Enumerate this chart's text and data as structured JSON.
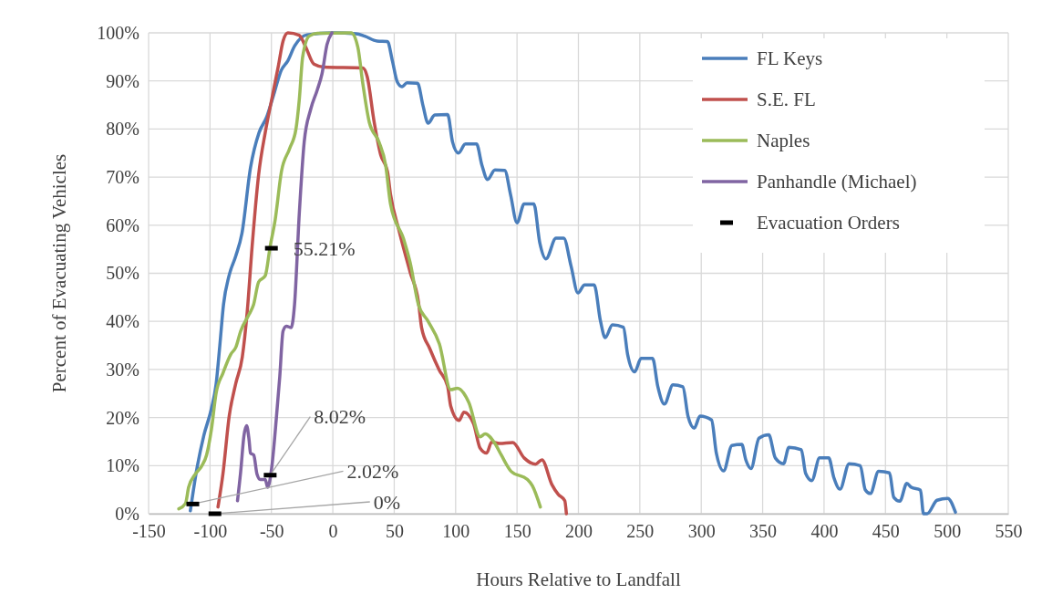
{
  "chart_data": {
    "type": "line",
    "xlabel": "Hours Relative to Landfall",
    "ylabel": "Percent of Evacuating Vehicles",
    "xlim": [
      -150,
      550
    ],
    "xticks": [
      -150,
      -100,
      -50,
      0,
      50,
      100,
      150,
      200,
      250,
      300,
      350,
      400,
      450,
      500,
      550
    ],
    "ylim": [
      0,
      100
    ],
    "yticks": [
      {
        "value": 0,
        "label": "0%"
      },
      {
        "value": 10,
        "label": "10%"
      },
      {
        "value": 20,
        "label": "20%"
      },
      {
        "value": 30,
        "label": "30%"
      },
      {
        "value": 40,
        "label": "40%"
      },
      {
        "value": 50,
        "label": "50%"
      },
      {
        "value": 60,
        "label": "60%"
      },
      {
        "value": 70,
        "label": "70%"
      },
      {
        "value": 80,
        "label": "80%"
      },
      {
        "value": 90,
        "label": "90%"
      },
      {
        "value": 100,
        "label": "100%"
      }
    ],
    "grid": true,
    "legend": "top right",
    "series": [
      {
        "name": "FL Keys",
        "color": "#4a7ebb",
        "x": [
          -116,
          -111,
          -105,
          -99,
          -95,
          -92,
          -89,
          -84.5,
          -79,
          -74,
          -67,
          -60,
          -54,
          -48.5,
          -42,
          -36.6,
          -31,
          -21,
          0.5,
          19,
          26,
          36,
          44.5,
          48.5,
          52.5,
          56.4,
          60.4,
          69,
          73.5,
          77.6,
          83,
          93.5,
          97.5,
          102.3,
          108,
          117,
          121.4,
          126,
          132,
          140,
          144.7,
          150,
          155.8,
          163.7,
          168.5,
          173.6,
          181.7,
          188,
          194,
          199.6,
          205,
          212.8,
          218,
          221.8,
          227.7,
          236.6,
          240,
          245.8,
          251,
          260.4,
          264.6,
          270,
          277,
          285,
          289.3,
          294.3,
          299,
          308.4,
          312.3,
          318.2,
          325,
          333,
          336.3,
          340.5,
          347,
          355,
          360.3,
          367,
          371.4,
          381.5,
          385,
          390,
          396.4,
          403.8,
          408,
          413,
          420.4,
          429.5,
          433.5,
          437.7,
          444.4,
          453.3,
          456.8,
          461.7,
          467.4,
          471,
          478.5,
          481,
          484,
          492,
          500.7,
          507
        ],
        "values": [
          0.6,
          8.9,
          16.3,
          21.7,
          27,
          35,
          43.5,
          49.5,
          53.6,
          58.3,
          72,
          79.3,
          82.4,
          86.8,
          92.2,
          94.2,
          97.3,
          99.6,
          100,
          99.8,
          99.3,
          98.3,
          98.2,
          94.2,
          89.8,
          88.8,
          89.6,
          89.5,
          84.8,
          81.2,
          82.9,
          83,
          77.3,
          75,
          76.9,
          76.9,
          72.5,
          69.5,
          71.5,
          71.4,
          66.4,
          60.5,
          64.4,
          64.4,
          56.4,
          53,
          57.3,
          57.3,
          51.5,
          45.9,
          47.6,
          47.6,
          40,
          36.6,
          39.3,
          38.8,
          33.2,
          29.5,
          32.3,
          32.3,
          26.5,
          22.8,
          26.8,
          26.4,
          20.2,
          17.8,
          20.3,
          19.5,
          12.6,
          8.9,
          14.2,
          14.4,
          11.2,
          9.4,
          15.7,
          16.4,
          11.6,
          10.4,
          13.8,
          13.3,
          8.4,
          6.9,
          11.6,
          11.6,
          7.5,
          5.1,
          10.4,
          10,
          5,
          4.2,
          8.8,
          8.5,
          3.4,
          2.6,
          6.3,
          5.5,
          4.9,
          0,
          0,
          2.8,
          3.2,
          0.3
        ]
      },
      {
        "name": "S.E. FL",
        "color": "#c0504d",
        "x": [
          -93.5,
          -89.5,
          -84.3,
          -79,
          -73.7,
          -69.7,
          -65.7,
          -60.4,
          -55,
          -49.8,
          -44.5,
          -40.5,
          -36.6,
          -27.4,
          -22,
          -15.4,
          -7.4,
          24.4,
          28,
          33.7,
          39,
          44.5,
          47,
          53.8,
          63,
          69.7,
          72.3,
          79,
          86.8,
          93.5,
          96,
          102.8,
          106.8,
          114.6,
          120,
          125.3,
          129.3,
          135.8,
          146.5,
          155.8,
          165,
          170.3,
          178.3,
          183.6,
          188.9,
          190.2
        ],
        "values": [
          1.4,
          8.2,
          20.4,
          27.1,
          32.6,
          42,
          55.6,
          70.5,
          79.3,
          86.1,
          92.9,
          98.3,
          100,
          99.5,
          97,
          93.5,
          92.9,
          92.7,
          90.9,
          81.4,
          74.6,
          71.2,
          66.4,
          59,
          50.2,
          44.1,
          38.7,
          34.3,
          29.8,
          26.5,
          22.4,
          19.4,
          21.1,
          18.7,
          13.6,
          12.6,
          14.9,
          14.6,
          14.8,
          11.6,
          10.3,
          11.2,
          6.1,
          4,
          2.7,
          0
        ]
      },
      {
        "name": "Naples",
        "color": "#9bbb59",
        "x": [
          -125.4,
          -120,
          -117.4,
          -112,
          -106.8,
          -102.8,
          -98.8,
          -95,
          -89.5,
          -83,
          -79,
          -75,
          -68.3,
          -64.5,
          -60.4,
          -55,
          -51,
          -47,
          -41.8,
          -35.2,
          -30,
          -27.3,
          -24.6,
          -19.3,
          -12.7,
          15,
          20.4,
          24.4,
          29.7,
          37.6,
          43,
          47,
          57.8,
          63,
          69.7,
          77.6,
          86.8,
          96,
          101.5,
          110.8,
          120,
          124,
          132,
          137.2,
          145.2,
          158.5,
          162.5,
          169
        ],
        "values": [
          1,
          2.1,
          5.5,
          8.2,
          9.9,
          12.2,
          17.6,
          25.1,
          29.2,
          33.2,
          34.6,
          38,
          41.4,
          43.5,
          48.2,
          49.5,
          55.6,
          61,
          71.2,
          75.9,
          80,
          86.1,
          94.9,
          99.3,
          99.9,
          100,
          97,
          89.5,
          81.4,
          77.3,
          72.5,
          64.4,
          57,
          52.2,
          43.5,
          40,
          35.3,
          25.8,
          26.1,
          23.1,
          16,
          16.6,
          14.6,
          12.2,
          8.8,
          7.1,
          5.8,
          1.4
        ]
      },
      {
        "name": "Panhandle (Michael)",
        "color": "#8064a2",
        "x": [
          -77.6,
          -75,
          -72.3,
          -70.2,
          -68.3,
          -67,
          -64.4,
          -61.7,
          -59,
          -55,
          -53,
          -49.8,
          -45.8,
          -43.2,
          -40.5,
          -37.8,
          -33.9,
          -31.2,
          -27.3,
          -23.3,
          -18,
          -12.7,
          -8.8,
          -4.7,
          -0.7
        ],
        "values": [
          2.7,
          8.8,
          16.3,
          18.3,
          15.6,
          12.6,
          12.2,
          8.2,
          7.1,
          7.1,
          5.5,
          9.5,
          20.4,
          28.5,
          38,
          39,
          38.7,
          43.4,
          62.4,
          77.3,
          84.1,
          88.1,
          91.5,
          97.6,
          100
        ]
      },
      {
        "name": "Evacuation Orders",
        "type": "scatter",
        "color": "#000000",
        "x": [
          -114,
          -96,
          -51,
          -50
        ],
        "values": [
          2.02,
          0,
          8.02,
          55.21
        ],
        "value_labels": [
          "2.02%",
          "0%",
          "8.02%",
          "55.21%"
        ]
      }
    ]
  }
}
